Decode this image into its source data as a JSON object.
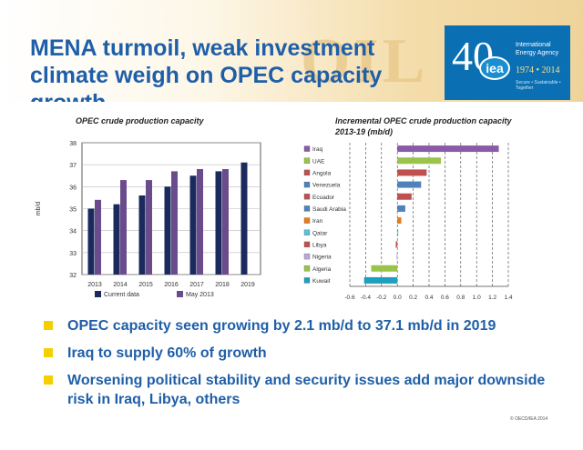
{
  "slide": {
    "title": "MENA turmoil, weak investment climate weigh on OPEC capacity growth",
    "background_word": "OIL",
    "bullets": [
      "OPEC capacity seen growing by 2.1 mb/d to 37.1 mb/d in 2019",
      "Iraq to supply 60% of growth",
      "Worsening political stability and security issues add major downside risk in Iraq, Libya, others"
    ],
    "copyright": "© OECD/IEA 2014",
    "accent_color": "#1f5fa8",
    "bullet_color": "#f5d000"
  },
  "logo": {
    "number": "40",
    "circle_text": "iea",
    "line1": "International",
    "line2": "Energy Agency",
    "years": "1974 • 2014",
    "tagline": "Secure • Sustainable • Together"
  },
  "chart_data": [
    {
      "type": "bar",
      "title": "OPEC crude production capacity",
      "ylabel": "mb/d",
      "categories": [
        "2013",
        "2014",
        "2015",
        "2016",
        "2017",
        "2018",
        "2019"
      ],
      "series": [
        {
          "name": "Current data",
          "color": "#1b2a5c",
          "values": [
            35.0,
            35.2,
            35.6,
            36.0,
            36.5,
            36.7,
            37.1
          ]
        },
        {
          "name": "May 2013",
          "color": "#6a4c8c",
          "values": [
            35.4,
            36.3,
            36.3,
            36.7,
            36.8,
            36.8,
            null
          ]
        }
      ],
      "ylim": [
        32,
        38
      ],
      "yticks": [
        32,
        33,
        34,
        35,
        36,
        37,
        38
      ],
      "grid": true,
      "legend": "bottom"
    },
    {
      "type": "bar",
      "orientation": "horizontal",
      "title": "Incremental OPEC crude production capacity 2013-19 (mb/d)",
      "categories": [
        "Iraq",
        "UAE",
        "Angola",
        "Venezuela",
        "Ecuador",
        "Saudi Arabia",
        "Iran",
        "Qatar",
        "Libya",
        "Nigeria",
        "Algeria",
        "Kuwait"
      ],
      "values": [
        1.28,
        0.55,
        0.37,
        0.3,
        0.18,
        0.1,
        0.05,
        0.01,
        -0.02,
        -0.01,
        -0.33,
        -0.42
      ],
      "colors": [
        "#8a5aa8",
        "#9ac34a",
        "#c0504d",
        "#4f81bd",
        "#c0504d",
        "#4f81bd",
        "#e87a1e",
        "#5bc0de",
        "#c0504d",
        "#b8a9d9",
        "#9ac34a",
        "#1ba0c0"
      ],
      "xlim": [
        -0.6,
        1.4
      ],
      "xticks": [
        -0.6,
        -0.4,
        -0.2,
        0.0,
        0.2,
        0.4,
        0.6,
        0.8,
        1.0,
        1.2,
        1.4
      ],
      "grid": true,
      "legend": "left"
    }
  ]
}
